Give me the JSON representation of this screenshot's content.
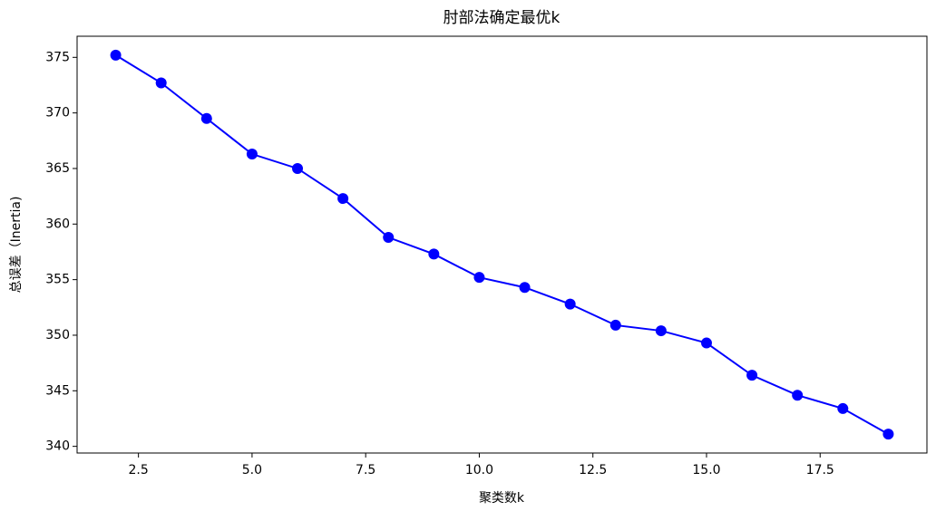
{
  "chart_data": {
    "type": "line",
    "title": "肘部法确定最优k",
    "x_label": "聚类数k",
    "y_label": "总误差（Inertia)",
    "x": [
      2,
      3,
      4,
      5,
      6,
      7,
      8,
      9,
      10,
      11,
      12,
      13,
      14,
      15,
      16,
      17,
      18,
      19
    ],
    "series": [
      {
        "color": "#0000ff",
        "marker": "o",
        "values": [
          375.2,
          372.7,
          369.5,
          366.3,
          365.0,
          362.3,
          358.8,
          357.3,
          355.2,
          354.3,
          352.8,
          350.9,
          350.4,
          349.3,
          346.4,
          344.6,
          343.4,
          341.1
        ]
      }
    ],
    "xlim": [
      1.15,
      19.85
    ],
    "xticks": [
      2.5,
      {
        "value": 5,
        "label": "5.0"
      },
      7.5,
      {
        "value": 10,
        "label": "10.0"
      },
      12.5,
      {
        "value": 15,
        "label": "15.0"
      },
      17.5
    ],
    "ylim": [
      339.4,
      376.9
    ],
    "yticks": [
      340,
      345,
      350,
      355,
      360,
      365,
      370,
      375
    ],
    "grid": false
  }
}
